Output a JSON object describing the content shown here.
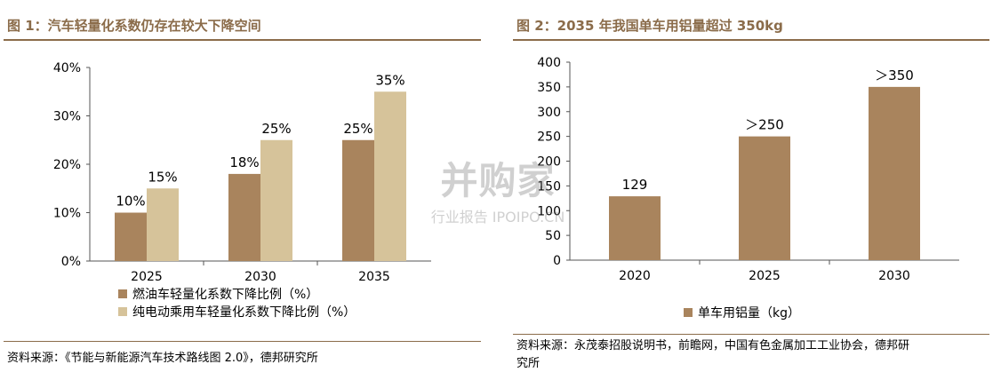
{
  "left_panel": {
    "title": "图 1：汽车轻量化系数仍存在较大下降空间",
    "source": "资料来源：《节能与新能源汽车技术路线图 2.0》，德邦研究所"
  },
  "right_panel": {
    "title": "图 2：2035 年我国单车用铝量超过 350kg",
    "source_line1": "资料来源：永茂泰招股说明书，前瞻网，中国有色金属加工工业协会，德邦研",
    "source_line2": "究所"
  },
  "watermark": {
    "main": "并购家",
    "sub": "行业报告 IPOIPO.CN"
  },
  "colors": {
    "dark": "#a9845d",
    "light": "#d6c39a",
    "accent": "#8b6c4a"
  },
  "chart_data": [
    {
      "type": "bar",
      "categories": [
        "2025",
        "2030",
        "2035"
      ],
      "series": [
        {
          "name": "燃油车轻量化系数下降比例（%）",
          "values": [
            10,
            18,
            25
          ],
          "labels": [
            "10%",
            "18%",
            "25%"
          ]
        },
        {
          "name": "纯电动乘用车轻量化系数下降比例（%）",
          "values": [
            15,
            25,
            35
          ],
          "labels": [
            "15%",
            "25%",
            "35%"
          ]
        }
      ],
      "ylim": [
        0,
        40
      ],
      "yticks": [
        0,
        10,
        20,
        30,
        40
      ],
      "ytick_labels": [
        "0%",
        "10%",
        "20%",
        "30%",
        "40%"
      ],
      "legend_position": "bottom",
      "grid": false
    },
    {
      "type": "bar",
      "categories": [
        "2020",
        "2025",
        "2030"
      ],
      "series": [
        {
          "name": "单车用铝量（kg）",
          "values": [
            129,
            250,
            350
          ],
          "labels": [
            "129",
            "＞250",
            "＞350"
          ]
        }
      ],
      "ylim": [
        0,
        400
      ],
      "yticks": [
        0,
        50,
        100,
        150,
        200,
        250,
        300,
        350,
        400
      ],
      "ytick_labels": [
        "0",
        "50",
        "100",
        "150",
        "200",
        "250",
        "300",
        "350",
        "400"
      ],
      "legend_position": "bottom",
      "grid": false
    }
  ]
}
